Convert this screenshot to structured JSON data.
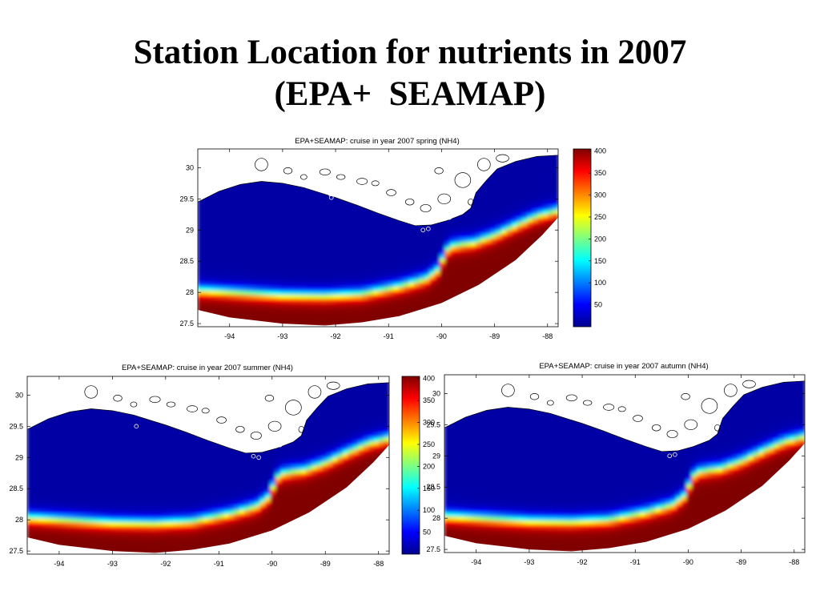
{
  "slide": {
    "title_line1": "Station Location for nutrients in 2007",
    "title_line2": "(EPA+  SEAMAP)"
  },
  "chart_data": [
    {
      "type": "heatmap",
      "title": "EPA+SEAMAP: cruise in year 2007 spring (NH4)",
      "x_ticks": [
        -94,
        -93,
        -92,
        -91,
        -90,
        -89,
        -88
      ],
      "y_ticks": [
        27.5,
        28,
        28.5,
        29,
        29.5,
        30
      ],
      "xlim": [
        -94.6,
        -87.8
      ],
      "ylim": [
        27.45,
        30.3
      ],
      "colorbar": {
        "ticks": [
          50,
          100,
          150,
          200,
          250,
          300,
          350,
          400
        ],
        "range": [
          0,
          405
        ]
      },
      "stations": [
        [
          -92.1,
          29.58
        ],
        [
          -92.08,
          29.52
        ],
        [
          -90.35,
          29.0
        ],
        [
          -90.25,
          29.02
        ],
        [
          -89.95,
          29.18
        ],
        [
          -89.85,
          29.2
        ]
      ]
    },
    {
      "type": "heatmap",
      "title": "EPA+SEAMAP: cruise in year 2007 summer (NH4)",
      "x_ticks": [
        -94,
        -93,
        -92,
        -91,
        -90,
        -89,
        -88
      ],
      "y_ticks": [
        27.5,
        28,
        28.5,
        29,
        29.5,
        30
      ],
      "xlim": [
        -94.6,
        -87.8
      ],
      "ylim": [
        27.45,
        30.3
      ],
      "colorbar": {
        "ticks": [
          50,
          100,
          150,
          200,
          250,
          300,
          350,
          400
        ],
        "range": [
          0,
          405
        ]
      },
      "stations": [
        [
          -94.55,
          29.52
        ],
        [
          -92.55,
          29.5
        ],
        [
          -90.35,
          29.02
        ],
        [
          -90.25,
          29.0
        ],
        [
          -89.95,
          29.18
        ],
        [
          -89.85,
          29.2
        ]
      ]
    },
    {
      "type": "heatmap",
      "title": "EPA+SEAMAP: cruise in year 2007 autumn (NH4)",
      "x_ticks": [
        -94,
        -93,
        -92,
        -91,
        -90,
        -89,
        -88
      ],
      "y_ticks": [
        27.5,
        28,
        28.5,
        29,
        29.5,
        30
      ],
      "xlim": [
        -94.6,
        -87.8
      ],
      "ylim": [
        27.45,
        30.3
      ],
      "colorbar": null,
      "stations": [
        [
          -92.1,
          29.6
        ],
        [
          -90.35,
          29.0
        ],
        [
          -90.25,
          29.02
        ]
      ]
    }
  ]
}
